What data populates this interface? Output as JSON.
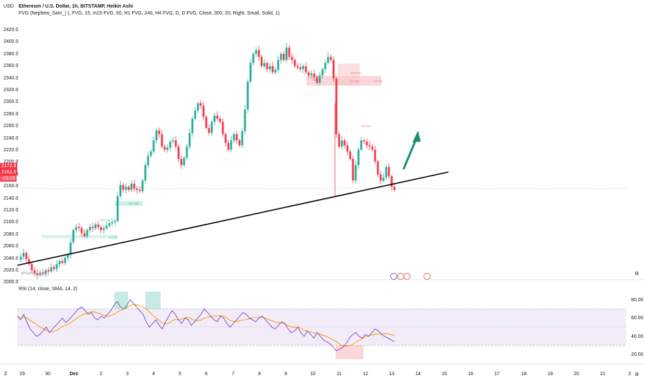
{
  "header": {
    "currency": "USD",
    "symbol_line": "Ethereum / U.S. Dollar, 1h, BITSTAMP, Heikin Ashi",
    "indicator_line": "FVG (Nephew_Sam_) (, FVG, 15, m15 FVG, 60, H1 FVG, 240, H4 FVG, D, D FVG, Close, 300, 20, Right, Small, Solid, 1)"
  },
  "price_axis": {
    "labels": [
      "2420.0",
      "2400.0",
      "2380.0",
      "2360.0",
      "2340.0",
      "2320.0",
      "2300.0",
      "2280.0",
      "2260.0",
      "2240.0",
      "2220.0",
      "2200.0",
      "2180.0",
      "2160.0",
      "2140.0",
      "2120.0",
      "2100.0",
      "2080.0",
      "2060.0",
      "2040.0",
      "2020.0",
      "2000.0"
    ],
    "tag_current_top": "2172.8",
    "tag_current_mid": "2162.5",
    "tag_current_bottom": "-03:28"
  },
  "rsi": {
    "title": "RSI (14, close, SMA, 14, 2)",
    "labels": [
      "80.00",
      "60.00",
      "40.00",
      "20.00"
    ]
  },
  "time_axis": {
    "labels": [
      "29",
      "30",
      "Dec",
      "2",
      "3",
      "4",
      "5",
      "6",
      "7",
      "8",
      "9",
      "10",
      "11",
      "12",
      "13",
      "14",
      "15",
      "16",
      "17",
      "18",
      "19",
      "20",
      "21",
      "2"
    ]
  },
  "fvg_labels": {
    "h4_fvg": "H4 FVG",
    "h1_fvg": "H1 FVG",
    "d_fvg": "D FVG",
    "h1_fvg_low": "H1 FVG",
    "green_top": "H1 FVG",
    "green_mid": "H1 FVG",
    "green_low": "D FVG"
  },
  "watermark": "@Nephew_Sam_",
  "bottom_left": "Z",
  "bottom_right": "⚙",
  "corner_right": "⚙",
  "colors": {
    "up": "#22ab94",
    "down": "#f23645",
    "trendline": "#000000",
    "arrow": "#1b8f78",
    "rsi_line": "#7e57c2",
    "rsi_ma": "#ff9800",
    "rsi_band": "#ede7f6"
  }
}
